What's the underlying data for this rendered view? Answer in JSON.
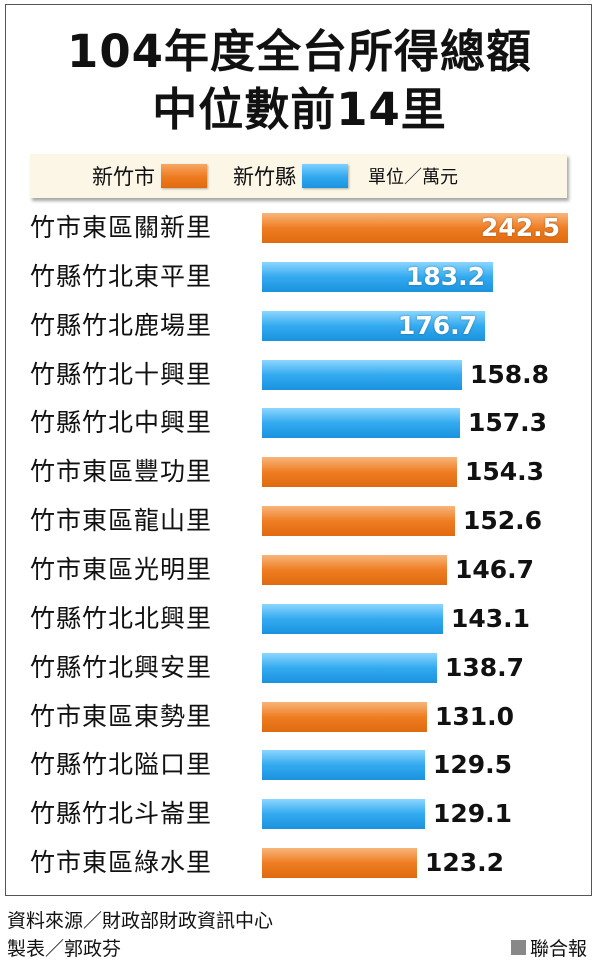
{
  "title_line1": "104年度全台所得總額",
  "title_line2": "中位數前14里",
  "legend": {
    "city_label": "新竹市",
    "county_label": "新竹縣",
    "unit": "單位／萬元"
  },
  "colors": {
    "city": "#ee7a1e",
    "county": "#31a8ef"
  },
  "chart_data": {
    "type": "bar",
    "orientation": "horizontal",
    "categories": [
      "竹市東區關新里",
      "竹縣竹北東平里",
      "竹縣竹北鹿場里",
      "竹縣竹北十興里",
      "竹縣竹北中興里",
      "竹市東區豐功里",
      "竹市東區龍山里",
      "竹市東區光明里",
      "竹縣竹北北興里",
      "竹縣竹北興安里",
      "竹市東區東勢里",
      "竹縣竹北隘口里",
      "竹縣竹北斗崙里",
      "竹市東區綠水里"
    ],
    "values": [
      242.5,
      183.2,
      176.7,
      158.8,
      157.3,
      154.3,
      152.6,
      146.7,
      143.1,
      138.7,
      131.0,
      129.5,
      129.1,
      123.2
    ],
    "value_labels": [
      "242.5",
      "183.2",
      "176.7",
      "158.8",
      "157.3",
      "154.3",
      "152.6",
      "146.7",
      "143.1",
      "138.7",
      "131.0",
      "129.5",
      "129.1",
      "123.2"
    ],
    "groups": [
      "新竹市",
      "新竹縣",
      "新竹縣",
      "新竹縣",
      "新竹縣",
      "新竹市",
      "新竹市",
      "新竹市",
      "新竹縣",
      "新竹縣",
      "新竹市",
      "新竹縣",
      "新竹縣",
      "新竹市"
    ],
    "xlim": [
      0,
      242.5
    ]
  },
  "footer": {
    "source": "資料來源／財政部財政資訊中心",
    "maker": "製表／郭政芬",
    "brand": "聯合報"
  }
}
